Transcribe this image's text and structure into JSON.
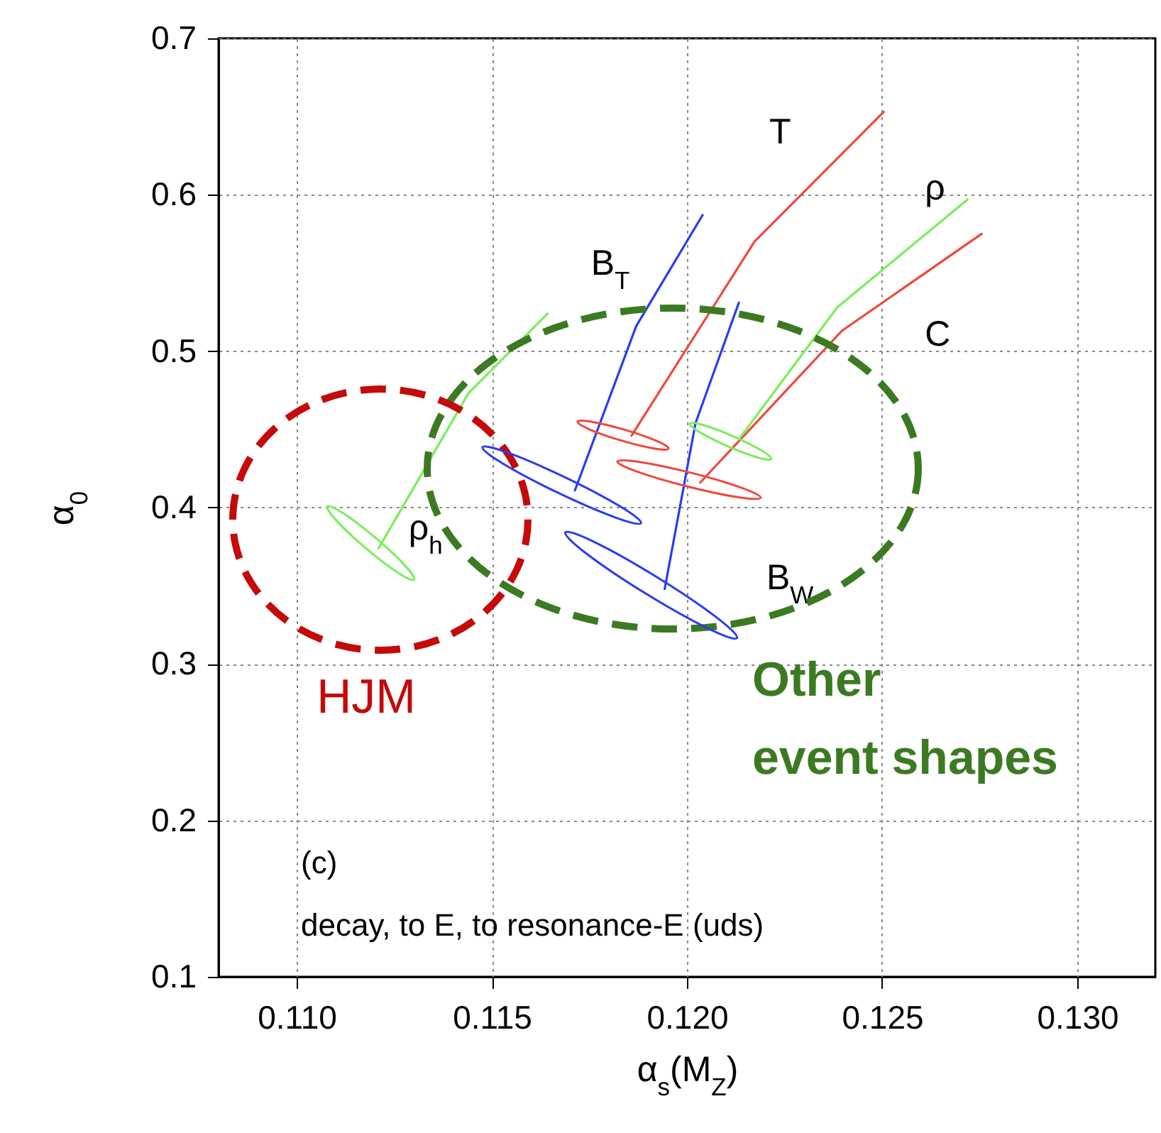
{
  "chart_data": {
    "type": "line",
    "xlabel": "α$_{s}$(M$_{Z}$)",
    "ylabel": "α$_{0}$",
    "xlim": [
      0.108,
      0.132
    ],
    "ylim": [
      0.1,
      0.7
    ],
    "xticks": [
      {
        "value": 0.11,
        "label": "0.110"
      },
      {
        "value": 0.115,
        "label": "0.115"
      },
      {
        "value": 0.12,
        "label": "0.120"
      },
      {
        "value": 0.125,
        "label": "0.125"
      },
      {
        "value": 0.13,
        "label": "0.130"
      }
    ],
    "yticks": [
      0.1,
      0.2,
      0.3,
      0.4,
      0.5,
      0.6,
      0.7
    ],
    "grid": true,
    "annotations": [
      "HJM",
      "Other event shapes",
      "(c)",
      "decay, to E, to resonance-E (uds)"
    ],
    "series": [
      {
        "name": "T",
        "color": "#f0483c",
        "x": [
          0.12504,
          0.12173,
          0.11858
        ],
        "values": [
          0.653,
          0.57,
          0.446
        ]
      },
      {
        "name": "C",
        "color": "#f0483c",
        "x": [
          0.12755,
          0.12397,
          0.12034
        ],
        "values": [
          0.575,
          0.513,
          0.416
        ]
      },
      {
        "name": "ρ",
        "color": "#7aee5a",
        "x": [
          0.12719,
          0.12385,
          0.12137
        ],
        "values": [
          0.597,
          0.528,
          0.445
        ]
      },
      {
        "name": "B$_{T}$",
        "color": "#2a3cf0",
        "x": [
          0.1204,
          0.1187,
          0.11713
        ],
        "values": [
          0.587,
          0.516,
          0.411
        ]
      },
      {
        "name": "B$_{W}$",
        "color": "#2a3cf0",
        "x": [
          0.12133,
          0.12022,
          0.11943
        ],
        "values": [
          0.531,
          0.454,
          0.348
        ]
      },
      {
        "name": "ρ$_{h}$",
        "color": "#7aee5a",
        "x": [
          0.11643,
          0.1144,
          0.1121
        ],
        "values": [
          0.524,
          0.473,
          0.374
        ]
      }
    ]
  }
}
